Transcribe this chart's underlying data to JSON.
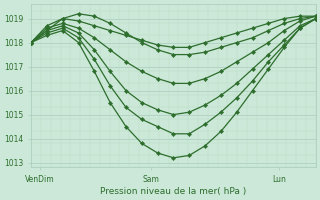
{
  "title": "Pression niveau de la mer( hPa )",
  "bg_color": "#cce8d8",
  "grid_color_major": "#aaccbb",
  "grid_color_minor": "#bbddc9",
  "line_color": "#2d6e2d",
  "ylim": [
    1012.8,
    1019.6
  ],
  "yticks": [
    1013,
    1014,
    1015,
    1016,
    1017,
    1018,
    1019
  ],
  "xtick_labels": [
    "VenDim",
    "Sam",
    "Lun"
  ],
  "xtick_pos": [
    0.03,
    0.42,
    0.87
  ],
  "series": [
    [
      1018.0,
      1018.7,
      1019.0,
      1018.9,
      1018.7,
      1018.5,
      1018.3,
      1018.1,
      1017.9,
      1017.8,
      1017.8,
      1018.0,
      1018.2,
      1018.4,
      1018.6,
      1018.8,
      1019.0,
      1019.1,
      1019.1
    ],
    [
      1018.0,
      1018.6,
      1018.8,
      1018.6,
      1018.2,
      1017.7,
      1017.2,
      1016.8,
      1016.5,
      1016.3,
      1016.3,
      1016.5,
      1016.8,
      1017.2,
      1017.6,
      1018.0,
      1018.5,
      1018.9,
      1019.1
    ],
    [
      1018.0,
      1018.5,
      1018.7,
      1018.4,
      1017.7,
      1016.8,
      1016.0,
      1015.5,
      1015.2,
      1015.0,
      1015.1,
      1015.4,
      1015.8,
      1016.3,
      1016.9,
      1017.5,
      1018.1,
      1018.7,
      1019.0
    ],
    [
      1018.0,
      1018.4,
      1018.6,
      1018.2,
      1017.3,
      1016.2,
      1015.3,
      1014.8,
      1014.5,
      1014.2,
      1014.2,
      1014.6,
      1015.1,
      1015.7,
      1016.4,
      1017.2,
      1017.9,
      1018.6,
      1019.0
    ],
    [
      1018.0,
      1018.3,
      1018.5,
      1018.0,
      1016.8,
      1015.5,
      1014.5,
      1013.8,
      1013.4,
      1013.2,
      1013.3,
      1013.7,
      1014.3,
      1015.1,
      1016.0,
      1016.9,
      1017.8,
      1018.6,
      1019.0
    ],
    [
      1018.0,
      1018.5,
      1019.0,
      1019.2,
      1019.1,
      1018.8,
      1018.4,
      1018.0,
      1017.7,
      1017.5,
      1017.5,
      1017.6,
      1017.8,
      1018.0,
      1018.2,
      1018.5,
      1018.8,
      1019.0,
      1019.1
    ]
  ],
  "marker": "D",
  "marker_size": 2.2,
  "linewidth": 0.9,
  "n_xgrid": 30
}
